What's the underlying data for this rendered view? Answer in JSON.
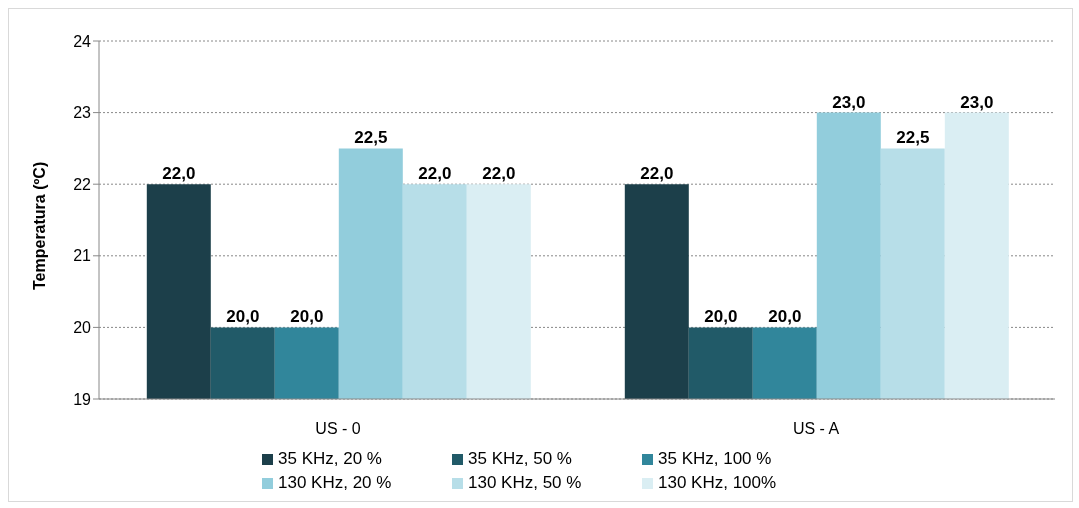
{
  "chart_data": {
    "type": "bar",
    "ylabel": "Temperatura (ºC)",
    "categories": [
      "US - 0",
      "US - A"
    ],
    "series": [
      {
        "name": "35 KHz, 20 %",
        "color": "#1c3f4a",
        "values": [
          22.0,
          22.0
        ],
        "value_labels": [
          "22,0",
          "22,0"
        ]
      },
      {
        "name": "35 KHz, 50 %",
        "color": "#215a68",
        "values": [
          20.0,
          20.0
        ],
        "value_labels": [
          "20,0",
          "20,0"
        ]
      },
      {
        "name": "35 KHz, 100 %",
        "color": "#31869b",
        "values": [
          20.0,
          20.0
        ],
        "value_labels": [
          "20,0",
          "20,0"
        ]
      },
      {
        "name": "130 KHz, 20 %",
        "color": "#92cddc",
        "values": [
          22.5,
          23.0
        ],
        "value_labels": [
          "22,5",
          "23,0"
        ]
      },
      {
        "name": "130 KHz, 50 %",
        "color": "#b7dee8",
        "values": [
          22.0,
          22.5
        ],
        "value_labels": [
          "22,0",
          "22,5"
        ]
      },
      {
        "name": "130 KHz, 100%",
        "color": "#daeef3",
        "values": [
          22.0,
          23.0
        ],
        "value_labels": [
          "22,0",
          "23,0"
        ]
      }
    ],
    "ylim": [
      19,
      24
    ],
    "yticks": [
      19,
      20,
      21,
      22,
      23,
      24
    ],
    "grid": "y",
    "legend": "bottom"
  }
}
